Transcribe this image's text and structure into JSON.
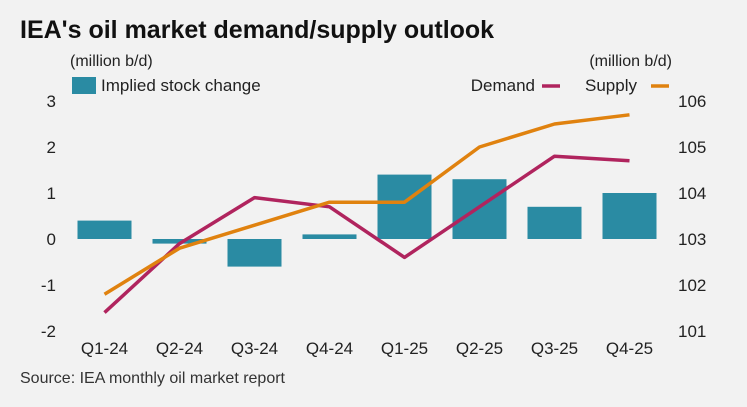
{
  "chart_data": {
    "type": "bar+line",
    "title": "IEA's oil market demand/supply outlook",
    "left_unit": "(million b/d)",
    "right_unit": "(million b/d)",
    "source": "Source: IEA monthly oil market report",
    "categories": [
      "Q1-24",
      "Q2-24",
      "Q3-24",
      "Q4-24",
      "Q1-25",
      "Q2-25",
      "Q3-25",
      "Q4-25"
    ],
    "left_axis": {
      "ylim": [
        -2,
        3
      ],
      "ticks": [
        "3",
        "2",
        "1",
        "0",
        "-1",
        "-2"
      ],
      "tick_values": [
        3,
        2,
        1,
        0,
        -1,
        -2
      ]
    },
    "right_axis": {
      "ylim": [
        101,
        106
      ],
      "ticks": [
        "106",
        "105",
        "104",
        "103",
        "102",
        "101"
      ],
      "tick_values": [
        106,
        105,
        104,
        103,
        102,
        101
      ]
    },
    "bars": {
      "name": "Implied stock change",
      "axis": "left",
      "color": "#2a8ba3",
      "values": [
        0.4,
        -0.1,
        -0.6,
        0.1,
        1.4,
        1.3,
        0.7,
        1.0
      ]
    },
    "series": [
      {
        "name": "Demand",
        "axis": "right",
        "color": "#b0245e",
        "values": [
          101.4,
          102.9,
          103.9,
          103.7,
          102.6,
          103.7,
          104.8,
          104.7
        ]
      },
      {
        "name": "Supply",
        "axis": "right",
        "color": "#e0820f",
        "values": [
          101.8,
          102.8,
          103.3,
          103.8,
          103.8,
          105.0,
          105.5,
          105.7
        ]
      }
    ]
  }
}
